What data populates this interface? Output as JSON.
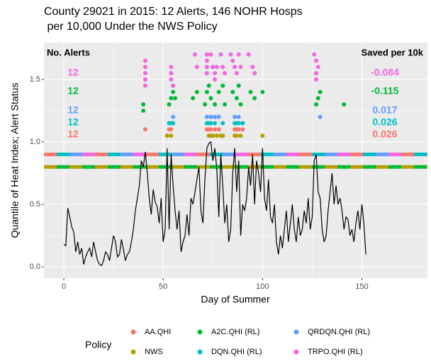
{
  "chart_data": {
    "type": "scatter",
    "title": [
      "County 29021 in 2015: 12 Alerts, 146 NOHR Hosps",
      " per 10,000 Under the NWS Policy"
    ],
    "x_label": "Day of Summer",
    "y_label": "Quantile of Heat Index; Alert Status",
    "alerts_header": "No. Alerts",
    "saved_header": "Saved per 10k",
    "legend_title": "Policy",
    "xlim": [
      -10,
      183
    ],
    "ylim": [
      -0.09,
      1.795
    ],
    "xticks": [
      0,
      50,
      100,
      150
    ],
    "yticks": [
      {
        "value": 0,
        "label": "0.0"
      },
      {
        "value": 0.5,
        "label": "0.5"
      },
      {
        "value": 1,
        "label": "1.0"
      },
      {
        "value": 1.5,
        "label": "1.5"
      }
    ],
    "grid": true,
    "heat_index": {
      "color": "#000000",
      "x": [
        0,
        1,
        2,
        3,
        4,
        5,
        6,
        7,
        8,
        9,
        10,
        11,
        12,
        13,
        14,
        15,
        16,
        17,
        18,
        19,
        20,
        21,
        22,
        23,
        24,
        25,
        26,
        27,
        28,
        29,
        30,
        31,
        32,
        33,
        34,
        35,
        36,
        37,
        38,
        39,
        40,
        41,
        42,
        43,
        44,
        45,
        46,
        47,
        48,
        49,
        50,
        51,
        52,
        53,
        54,
        55,
        56,
        57,
        58,
        59,
        60,
        61,
        62,
        63,
        64,
        65,
        66,
        67,
        68,
        69,
        70,
        71,
        72,
        73,
        74,
        75,
        76,
        77,
        78,
        79,
        80,
        81,
        82,
        83,
        84,
        85,
        86,
        87,
        88,
        89,
        90,
        91,
        92,
        93,
        94,
        95,
        96,
        97,
        98,
        99,
        100,
        101,
        102,
        103,
        104,
        105,
        106,
        107,
        108,
        109,
        110,
        111,
        112,
        113,
        114,
        115,
        116,
        117,
        118,
        119,
        120,
        121,
        122,
        123,
        124,
        125,
        126,
        127,
        128,
        129,
        130,
        131,
        132,
        133,
        134,
        135,
        136,
        137,
        138,
        139,
        140,
        141,
        142,
        143,
        144,
        145,
        146,
        147,
        148,
        149,
        150,
        151,
        152
      ],
      "values": [
        0.18,
        0.17,
        0.47,
        0.4,
        0.32,
        0.28,
        0.12,
        0.2,
        0.1,
        0.15,
        0.02,
        0.08,
        0.12,
        0.15,
        0.08,
        0.2,
        0.12,
        0.05,
        0.02,
        0.01,
        0.05,
        0.12,
        0.1,
        0.05,
        0.15,
        0.25,
        0.2,
        0.08,
        0.1,
        0.22,
        0.14,
        0.05,
        0.1,
        0.12,
        0.2,
        0.3,
        0.45,
        0.55,
        0.65,
        0.85,
        0.8,
        0.92,
        0.75,
        0.55,
        0.42,
        0.62,
        0.52,
        0.48,
        0.35,
        0.55,
        0.2,
        0.3,
        0.95,
        0.3,
        0.9,
        0.65,
        0.45,
        0.3,
        0.45,
        0.12,
        0.2,
        0.25,
        0.42,
        0.25,
        0.55,
        0.5,
        0.6,
        0.7,
        0.8,
        0.45,
        0.35,
        0.7,
        0.95,
        0.99,
        1.0,
        0.85,
        0.95,
        0.78,
        0.4,
        0.9,
        0.65,
        0.35,
        0.5,
        0.2,
        0.3,
        0.75,
        0.95,
        0.6,
        0.85,
        0.25,
        0.5,
        0.45,
        0.55,
        0.8,
        0.65,
        0.9,
        0.5,
        0.85,
        0.75,
        0.6,
        0.95,
        0.55,
        0.45,
        0.7,
        0.4,
        0.35,
        0.5,
        0.2,
        0.1,
        0.25,
        0.15,
        0.3,
        0.45,
        0.2,
        0.35,
        0.5,
        0.3,
        0.2,
        0.4,
        0.25,
        0.3,
        0.45,
        0.35,
        0.55,
        0.3,
        0.4,
        0.85,
        0.9,
        0.6,
        0.55,
        0.3,
        0.2,
        0.25,
        0.45,
        0.6,
        0.75,
        0.5,
        0.65,
        0.5,
        0.55,
        0.45,
        0.3,
        0.4,
        0.38,
        0.25,
        0.3,
        0.2,
        0.35,
        0.45,
        0.3,
        0.5,
        0.35,
        0.1
      ]
    },
    "series": [
      {
        "name": "AA.QHI",
        "color": "#F8766D",
        "threshold": 0.9,
        "alerts": 12,
        "saved": 0.026,
        "x": [
          41,
          53,
          54,
          72,
          73,
          74,
          76,
          78,
          86,
          87,
          88,
          90
        ],
        "y": [
          1.1,
          1.1,
          1.1,
          1.1,
          1.1,
          1.1,
          1.1,
          1.1,
          1.1,
          1.1,
          1.1,
          1.1
        ]
      },
      {
        "name": "NWS",
        "color": "#B79F00",
        "threshold": 0.8,
        "x": [
          52,
          54,
          73,
          74,
          75,
          77,
          79,
          80,
          86,
          87,
          89,
          100
        ],
        "y": [
          1.05,
          1.05,
          1.05,
          1.05,
          1.05,
          1.05,
          1.05,
          1.05,
          1.05,
          1.05,
          1.05,
          1.05
        ]
      },
      {
        "name": "A2C.QHI (RL)",
        "color": "#00BA38",
        "threshold": 0.8,
        "alerts": 12,
        "saved": -0.115,
        "x": [
          40,
          40,
          53,
          54,
          55,
          55,
          56,
          65,
          67,
          71,
          72,
          73,
          74,
          76,
          78,
          80,
          81,
          85,
          87,
          88,
          89,
          94,
          96,
          100,
          127,
          128,
          129,
          141
        ],
        "y": [
          1.3,
          1.25,
          1.3,
          1.35,
          1.4,
          1.45,
          1.35,
          1.35,
          1.4,
          1.3,
          1.4,
          1.45,
          1.35,
          1.3,
          1.4,
          1.45,
          1.3,
          1.4,
          1.35,
          1.45,
          1.3,
          1.4,
          1.35,
          1.4,
          1.3,
          1.35,
          1.4,
          1.3
        ]
      },
      {
        "name": "DQN.QHI (RL)",
        "color": "#00BFC4",
        "threshold": 0.9,
        "alerts": 12,
        "saved": 0.026,
        "x": [
          53,
          54,
          55,
          72,
          73,
          74,
          76,
          80,
          86,
          87,
          88,
          90
        ],
        "y": [
          1.15,
          1.15,
          1.15,
          1.15,
          1.15,
          1.15,
          1.15,
          1.15,
          1.15,
          1.15,
          1.15,
          1.15
        ]
      },
      {
        "name": "QRDQN.QHI (RL)",
        "color": "#619CFF",
        "threshold": 0.9,
        "alerts": 12,
        "saved": 0.017,
        "x": [
          55,
          72,
          74,
          76,
          78,
          86,
          88,
          129
        ],
        "y": [
          1.2,
          1.2,
          1.2,
          1.2,
          1.2,
          1.2,
          1.2,
          1.2
        ]
      },
      {
        "name": "TRPO.QHI (RL)",
        "color": "#F564E3",
        "threshold": 0.9,
        "alerts": 12,
        "saved": -0.084,
        "x": [
          41,
          41,
          41,
          41,
          41,
          54,
          54,
          54,
          55,
          66,
          67,
          72,
          72,
          72,
          72,
          74,
          75,
          76,
          76,
          77,
          79,
          80,
          81,
          84,
          85,
          86,
          87,
          88,
          89,
          93,
          95,
          96,
          126,
          127,
          128,
          127,
          127
        ],
        "y": [
          1.65,
          1.6,
          1.55,
          1.5,
          1.45,
          1.6,
          1.55,
          1.5,
          1.45,
          1.7,
          1.6,
          1.7,
          1.65,
          1.6,
          1.55,
          1.7,
          1.6,
          1.55,
          1.5,
          1.6,
          1.7,
          1.6,
          1.55,
          1.7,
          1.65,
          1.6,
          1.55,
          1.7,
          1.6,
          1.7,
          1.6,
          1.55,
          1.7,
          1.65,
          1.6,
          1.55,
          1.5
        ]
      }
    ]
  }
}
